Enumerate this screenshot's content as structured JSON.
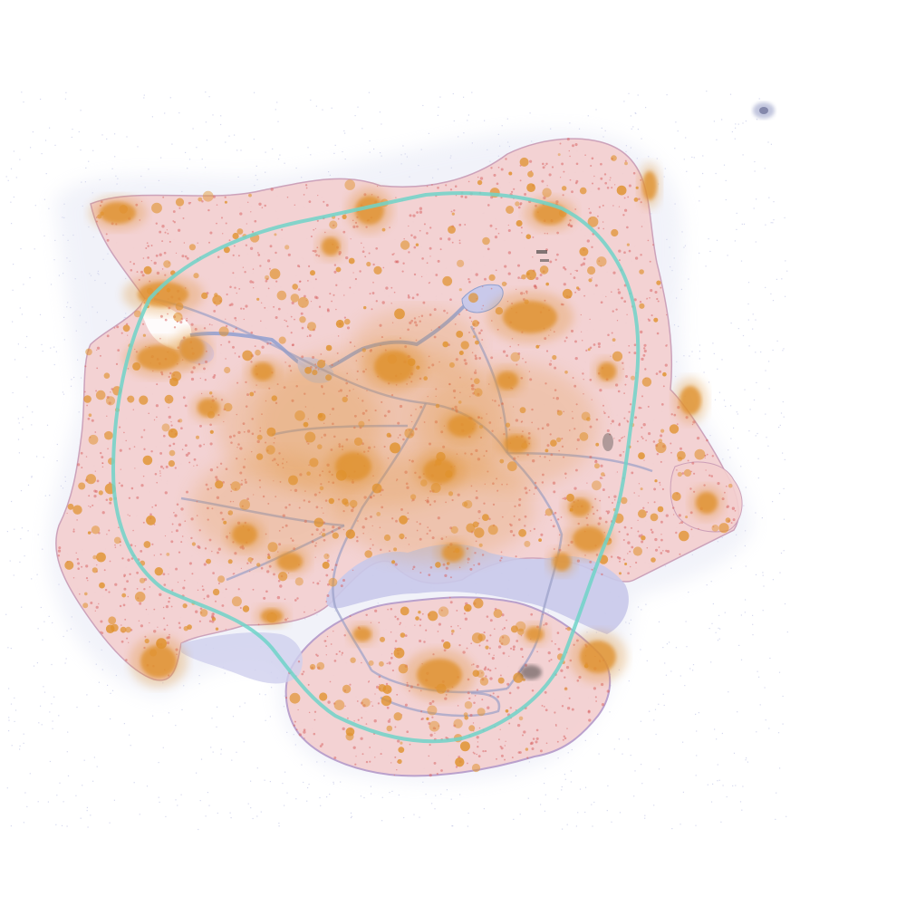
{
  "map": {
    "kind": "game-map-heatmap",
    "colors": {
      "background": "#ffffff",
      "scatter": "#b4b8e0",
      "land": "#f4cfcf",
      "land_edge": "#c89ab4",
      "water": "#c9c9ea",
      "hotspot": "#e0922e",
      "road": "#9aa0c8",
      "river": "#8fa0d0",
      "ring": "#6fd4c8",
      "dot": "#d96868"
    },
    "layers": [
      "scatter-layer",
      "land-mass",
      "water-bodies",
      "road-network",
      "hotspot-clusters",
      "safe-zone-ring"
    ]
  }
}
